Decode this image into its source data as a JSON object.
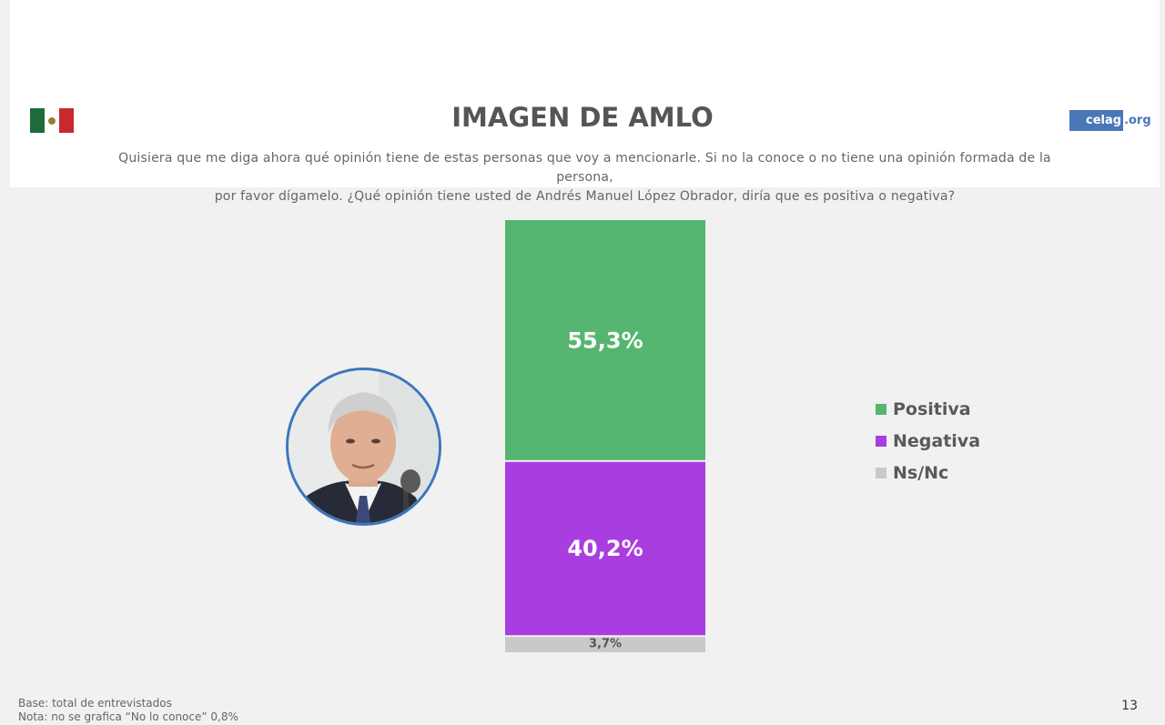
{
  "header": {
    "title": "IMAGEN DE AMLO",
    "question_line1": "Quisiera que me diga ahora qué opinión tiene de estas personas que voy a mencionarle. Si no la conoce o no tiene una opinión formada de la persona,",
    "question_line2": "por favor dígamelo. ¿Qué opinión tiene usted de Andrés Manuel López Obrador, diría que es positiva o negativa?",
    "logo_main": "celag",
    "logo_suffix": ".org",
    "flag_icon": "mexico-flag-icon"
  },
  "chart_data": {
    "type": "bar",
    "stacked": true,
    "categories": [
      ""
    ],
    "series": [
      {
        "name": "Positiva",
        "values": [
          55.3
        ],
        "label": "55,3%",
        "color": "#56b570"
      },
      {
        "name": "Negativa",
        "values": [
          40.2
        ],
        "label": "40,2%",
        "color": "#a93ddf"
      },
      {
        "name": "Ns/Nc",
        "values": [
          3.7
        ],
        "label": "3,7%",
        "color": "#c9c9c9"
      }
    ],
    "ylim": [
      0,
      99.2
    ],
    "legend_position": "right",
    "grid": false
  },
  "footer": {
    "base": "Base: total de entrevistados",
    "note": "Nota: no se grafica “No lo conoce” 0,8%",
    "page": "13"
  }
}
